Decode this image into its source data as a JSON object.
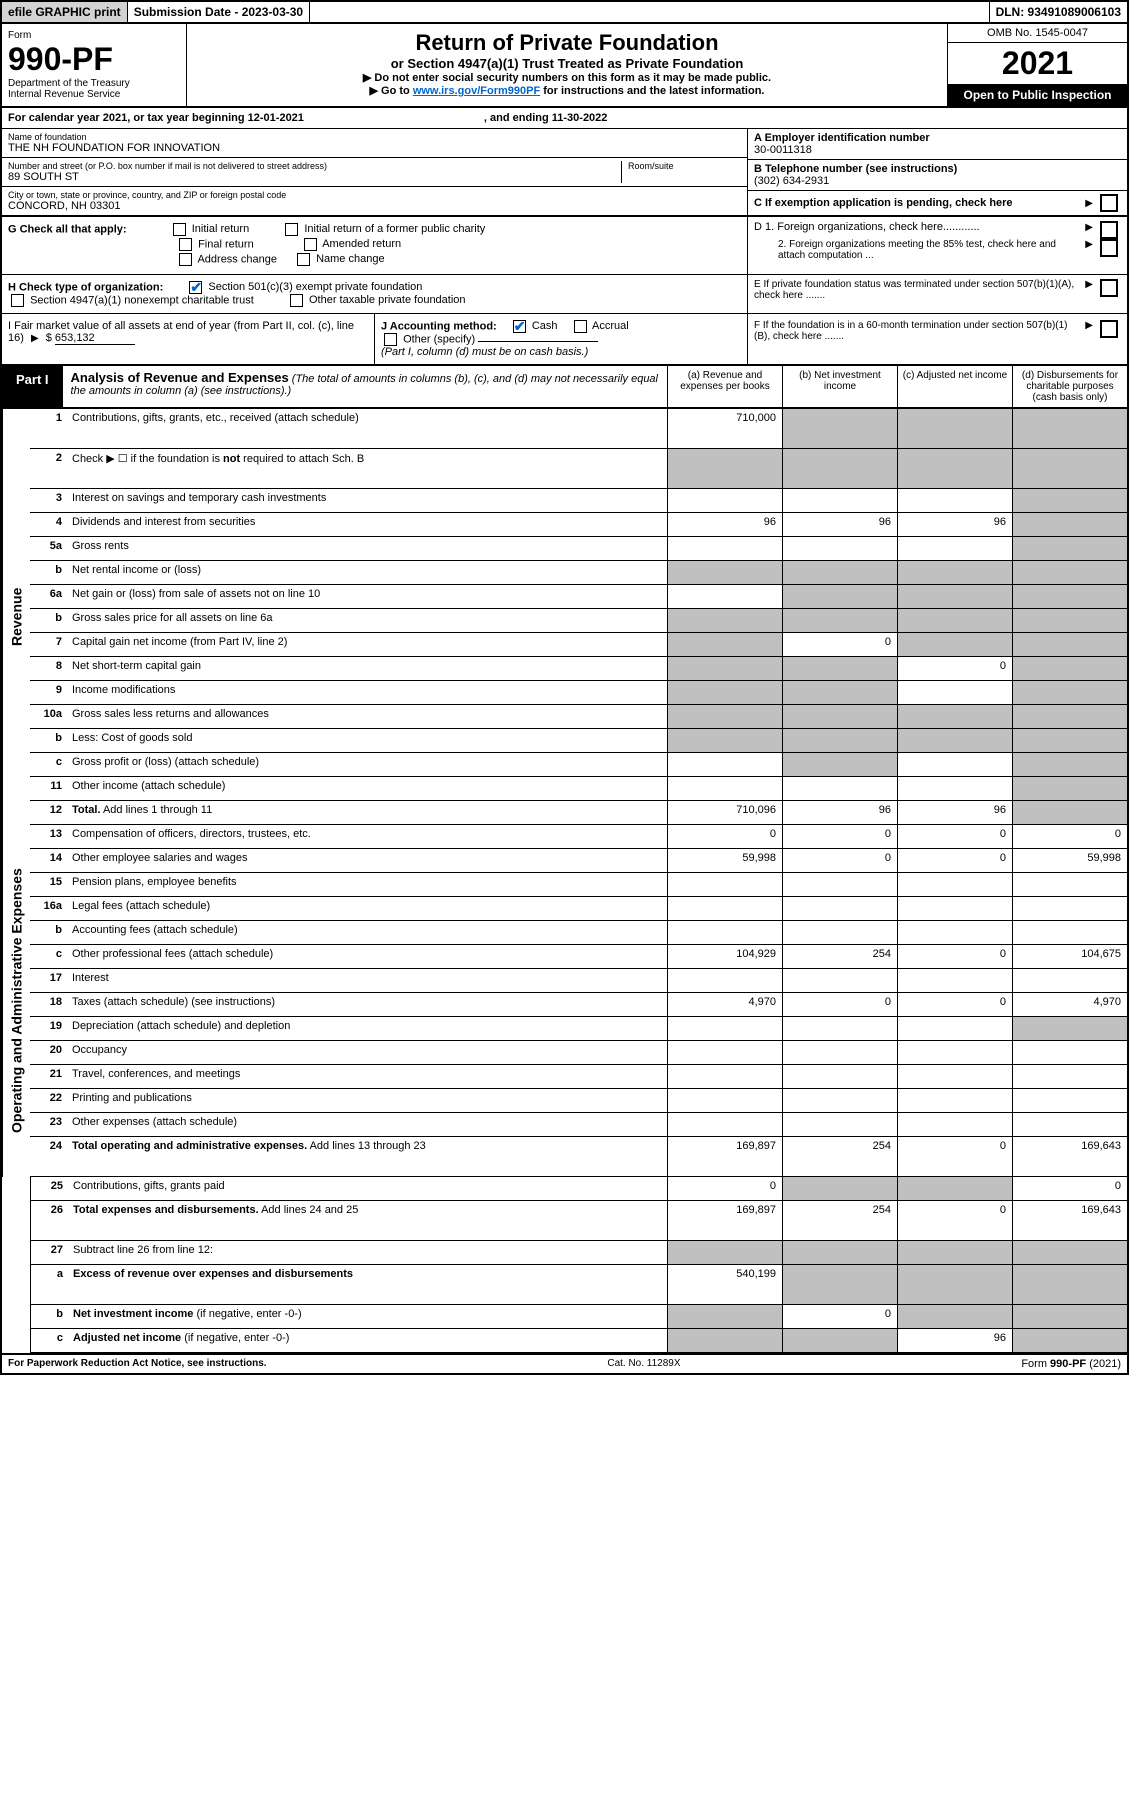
{
  "topbar": {
    "efile": "efile GRAPHIC print",
    "subdate_label": "Submission Date - 2023-03-30",
    "dln": "DLN: 93491089006103"
  },
  "header": {
    "form_word": "Form",
    "form_number": "990-PF",
    "dept": "Department of the Treasury",
    "irs": "Internal Revenue Service",
    "title": "Return of Private Foundation",
    "subtitle": "or Section 4947(a)(1) Trust Treated as Private Foundation",
    "instr1": "▶ Do not enter social security numbers on this form as it may be made public.",
    "instr2_pre": "▶ Go to ",
    "instr2_link": "www.irs.gov/Form990PF",
    "instr2_post": " for instructions and the latest information.",
    "omb": "OMB No. 1545-0047",
    "year": "2021",
    "open": "Open to Public Inspection"
  },
  "calyear": {
    "text": "For calendar year 2021, or tax year beginning 12-01-2021",
    "ending": ", and ending 11-30-2022"
  },
  "info": {
    "name_lbl": "Name of foundation",
    "name": "THE NH FOUNDATION FOR INNOVATION",
    "addr_lbl": "Number and street (or P.O. box number if mail is not delivered to street address)",
    "addr": "89 SOUTH ST",
    "room_lbl": "Room/suite",
    "city_lbl": "City or town, state or province, country, and ZIP or foreign postal code",
    "city": "CONCORD, NH  03301",
    "A_lbl": "A Employer identification number",
    "A_val": "30-0011318",
    "B_lbl": "B Telephone number (see instructions)",
    "B_val": "(302) 634-2931",
    "C_lbl": "C If exemption application is pending, check here"
  },
  "G": {
    "label": "G Check all that apply:",
    "opts": [
      "Initial return",
      "Initial return of a former public charity",
      "Final return",
      "Amended return",
      "Address change",
      "Name change"
    ],
    "D1": "D 1. Foreign organizations, check here............",
    "D2": "2. Foreign organizations meeting the 85% test, check here and attach computation ...",
    "E": "E  If private foundation status was terminated under section 507(b)(1)(A), check here ......."
  },
  "H": {
    "label": "H Check type of organization:",
    "opt1": "Section 501(c)(3) exempt private foundation",
    "opt2": "Section 4947(a)(1) nonexempt charitable trust",
    "opt3": "Other taxable private foundation"
  },
  "I": {
    "label": "I Fair market value of all assets at end of year (from Part II, col. (c), line 16)",
    "val": "653,132"
  },
  "J": {
    "label": "J Accounting method:",
    "cash": "Cash",
    "accrual": "Accrual",
    "other": "Other (specify)",
    "note": "(Part I, column (d) must be on cash basis.)"
  },
  "F": {
    "label": "F  If the foundation is in a 60-month termination under section 507(b)(1)(B), check here ......."
  },
  "part1": {
    "tab": "Part I",
    "title": "Analysis of Revenue and Expenses",
    "desc": "(The total of amounts in columns (b), (c), and (d) may not necessarily equal the amounts in column (a) (see instructions).)",
    "cols": {
      "a": "(a)   Revenue and expenses per books",
      "b": "(b)   Net investment income",
      "c": "(c)   Adjusted net income",
      "d": "(d)   Disbursements for charitable purposes (cash basis only)"
    }
  },
  "sidelabels": {
    "rev": "Revenue",
    "exp": "Operating and Administrative Expenses"
  },
  "lines": {
    "1": {
      "num": "1",
      "text": "Contributions, gifts, grants, etc., received (attach schedule)",
      "a": "710,000"
    },
    "2": {
      "num": "2",
      "text": "Check ▶ ☐ if the foundation is <b>not</b> required to attach Sch. B"
    },
    "3": {
      "num": "3",
      "text": "Interest on savings and temporary cash investments"
    },
    "4": {
      "num": "4",
      "text": "Dividends and interest from securities",
      "a": "96",
      "b": "96",
      "c": "96"
    },
    "5a": {
      "num": "5a",
      "text": "Gross rents"
    },
    "5b": {
      "num": "b",
      "text": "Net rental income or (loss)"
    },
    "6a": {
      "num": "6a",
      "text": "Net gain or (loss) from sale of assets not on line 10"
    },
    "6b": {
      "num": "b",
      "text": "Gross sales price for all assets on line 6a"
    },
    "7": {
      "num": "7",
      "text": "Capital gain net income (from Part IV, line 2)",
      "b": "0"
    },
    "8": {
      "num": "8",
      "text": "Net short-term capital gain",
      "c": "0"
    },
    "9": {
      "num": "9",
      "text": "Income modifications"
    },
    "10a": {
      "num": "10a",
      "text": "Gross sales less returns and allowances"
    },
    "10b": {
      "num": "b",
      "text": "Less: Cost of goods sold"
    },
    "10c": {
      "num": "c",
      "text": "Gross profit or (loss) (attach schedule)"
    },
    "11": {
      "num": "11",
      "text": "Other income (attach schedule)"
    },
    "12": {
      "num": "12",
      "text": "<b>Total.</b> Add lines 1 through 11",
      "a": "710,096",
      "b": "96",
      "c": "96"
    },
    "13": {
      "num": "13",
      "text": "Compensation of officers, directors, trustees, etc.",
      "a": "0",
      "b": "0",
      "c": "0",
      "d": "0"
    },
    "14": {
      "num": "14",
      "text": "Other employee salaries and wages",
      "a": "59,998",
      "b": "0",
      "c": "0",
      "d": "59,998"
    },
    "15": {
      "num": "15",
      "text": "Pension plans, employee benefits"
    },
    "16a": {
      "num": "16a",
      "text": "Legal fees (attach schedule)"
    },
    "16b": {
      "num": "b",
      "text": "Accounting fees (attach schedule)"
    },
    "16c": {
      "num": "c",
      "text": "Other professional fees (attach schedule)",
      "a": "104,929",
      "b": "254",
      "c": "0",
      "d": "104,675"
    },
    "17": {
      "num": "17",
      "text": "Interest"
    },
    "18": {
      "num": "18",
      "text": "Taxes (attach schedule) (see instructions)",
      "a": "4,970",
      "b": "0",
      "c": "0",
      "d": "4,970"
    },
    "19": {
      "num": "19",
      "text": "Depreciation (attach schedule) and depletion"
    },
    "20": {
      "num": "20",
      "text": "Occupancy"
    },
    "21": {
      "num": "21",
      "text": "Travel, conferences, and meetings"
    },
    "22": {
      "num": "22",
      "text": "Printing and publications"
    },
    "23": {
      "num": "23",
      "text": "Other expenses (attach schedule)"
    },
    "24": {
      "num": "24",
      "text": "<b>Total operating and administrative expenses.</b> Add lines 13 through 23",
      "a": "169,897",
      "b": "254",
      "c": "0",
      "d": "169,643"
    },
    "25": {
      "num": "25",
      "text": "Contributions, gifts, grants paid",
      "a": "0",
      "d": "0"
    },
    "26": {
      "num": "26",
      "text": "<b>Total expenses and disbursements.</b> Add lines 24 and 25",
      "a": "169,897",
      "b": "254",
      "c": "0",
      "d": "169,643"
    },
    "27": {
      "num": "27",
      "text": "Subtract line 26 from line 12:"
    },
    "27a": {
      "num": "a",
      "text": "<b>Excess of revenue over expenses and disbursements</b>",
      "a": "540,199"
    },
    "27b": {
      "num": "b",
      "text": "<b>Net investment income</b> (if negative, enter -0-)",
      "b": "0"
    },
    "27c": {
      "num": "c",
      "text": "<b>Adjusted net income</b> (if negative, enter -0-)",
      "c": "96"
    }
  },
  "footer": {
    "left": "For Paperwork Reduction Act Notice, see instructions.",
    "mid": "Cat. No. 11289X",
    "right_pre": "Form ",
    "right_bold": "990-PF",
    "right_post": " (2021)"
  }
}
